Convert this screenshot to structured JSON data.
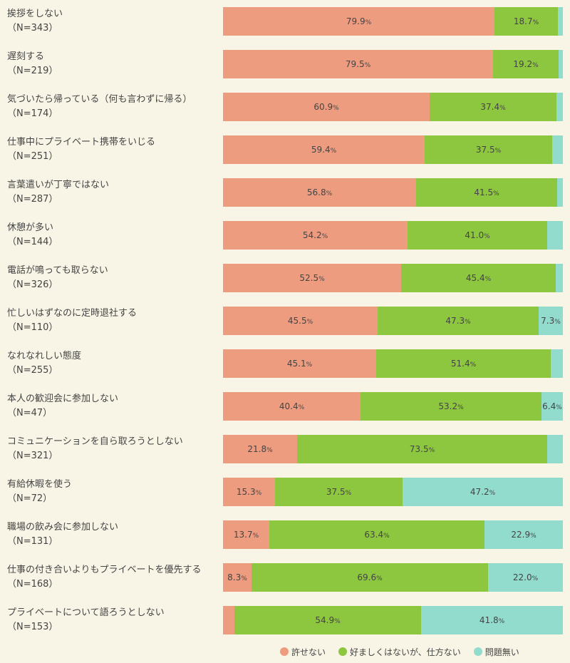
{
  "chart_data": {
    "type": "bar",
    "orientation": "horizontal",
    "stacked": true,
    "unit_suffix": "%",
    "categories": [
      {
        "label": "挨拶をしない",
        "n": "（N=343）"
      },
      {
        "label": "遅刻する",
        "n": "（N=219）"
      },
      {
        "label": "気づいたら帰っている（何も言わずに帰る）",
        "n": "（N=174）"
      },
      {
        "label": "仕事中にプライベート携帯をいじる",
        "n": "（N=251）"
      },
      {
        "label": "言葉遣いが丁寧ではない",
        "n": "（N=287）"
      },
      {
        "label": "休憩が多い",
        "n": "（N=144）"
      },
      {
        "label": "電話が鳴っても取らない",
        "n": "（N=326）"
      },
      {
        "label": "忙しいはずなのに定時退社する",
        "n": "（N=110）"
      },
      {
        "label": "なれなれしい態度",
        "n": "（N=255）"
      },
      {
        "label": "本人の歓迎会に参加しない",
        "n": "（N=47）"
      },
      {
        "label": "コミュニケーションを自ら取ろうとしない",
        "n": "（N=321）"
      },
      {
        "label": "有給休暇を使う",
        "n": "（N=72）"
      },
      {
        "label": "職場の飲み会に参加しない",
        "n": "（N=131）"
      },
      {
        "label": "仕事の付き合いよりもプライベートを優先する",
        "n": "（N=168）"
      },
      {
        "label": "プライベートについて語ろうとしない",
        "n": "（N=153）"
      }
    ],
    "series": [
      {
        "name": "許せない",
        "color": "#ee9c80",
        "values": [
          79.9,
          79.5,
          60.9,
          59.4,
          56.8,
          54.2,
          52.5,
          45.5,
          45.1,
          40.4,
          21.8,
          15.3,
          13.7,
          8.3,
          3.3
        ],
        "labels": [
          "79.9",
          "79.5",
          "60.9",
          "59.4",
          "56.8",
          "54.2",
          "52.5",
          "45.5",
          "45.1",
          "40.4",
          "21.8",
          "15.3",
          "13.7",
          "8.3",
          ""
        ]
      },
      {
        "name": "好ましくはないが、仕方ない",
        "color": "#8dc63f",
        "values": [
          18.7,
          19.2,
          37.4,
          37.5,
          41.5,
          41.0,
          45.4,
          47.3,
          51.4,
          53.2,
          73.5,
          37.5,
          63.4,
          69.6,
          54.9
        ],
        "labels": [
          "18.7",
          "19.2",
          "37.4",
          "37.5",
          "41.5",
          "41.0",
          "45.4",
          "47.3",
          "51.4",
          "53.2",
          "73.5",
          "37.5",
          "63.4",
          "69.6",
          "54.9"
        ]
      },
      {
        "name": "問題無い",
        "color": "#92dccd",
        "values": [
          1.4,
          1.3,
          1.7,
          3.1,
          1.7,
          4.8,
          2.1,
          7.3,
          3.5,
          6.4,
          4.7,
          47.2,
          22.9,
          22.0,
          41.8
        ],
        "labels": [
          "",
          "",
          "",
          "",
          "",
          "",
          "",
          "7.3",
          "",
          "6.4",
          "",
          "47.2",
          "22.9",
          "22.0",
          "41.8"
        ]
      }
    ],
    "xlim": [
      0,
      100
    ],
    "legend": "bottom-right"
  }
}
